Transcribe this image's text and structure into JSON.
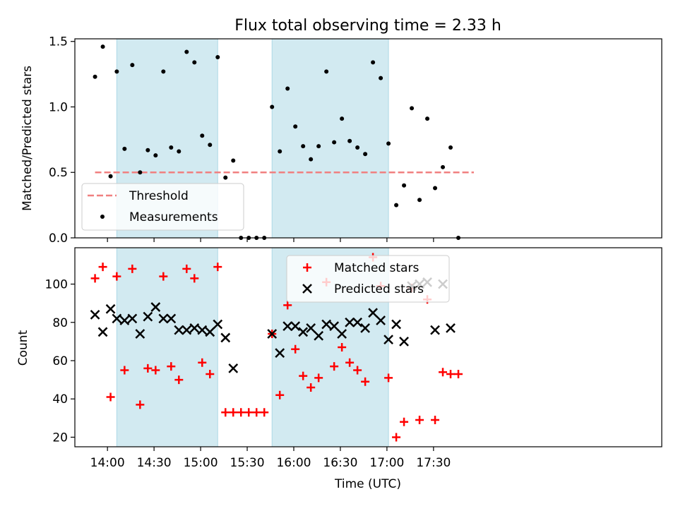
{
  "title": "Flux total observing time = 2.33 h",
  "colors": {
    "shade": "#add8e6",
    "threshold": "#f08080",
    "measurement": "#000000",
    "matched": "#ff0000",
    "predicted": "#000000"
  },
  "chart_data": [
    {
      "type": "scatter",
      "ylabel": "Matched/Predicted stars",
      "xlabel": "",
      "ylim": [
        0,
        1.52
      ],
      "xlim": [
        "13:39",
        "19:57"
      ],
      "yticks": [
        "0.0",
        "0.5",
        "1.0",
        "1.5"
      ],
      "ytick_values": [
        0,
        0.5,
        1.0,
        1.5
      ],
      "shaded_intervals": [
        [
          "14:06",
          "15:11"
        ],
        [
          "15:46",
          "17:01"
        ]
      ],
      "threshold": {
        "name": "Threshold",
        "value": 0.5,
        "x_start": "13:52",
        "x_end": "17:56"
      },
      "legend": {
        "placement": "lower-left",
        "entries": [
          "Threshold",
          "Measurements"
        ]
      },
      "series": [
        {
          "name": "Measurements",
          "marker": "dot",
          "x": [
            "13:52",
            "13:57",
            "14:02",
            "14:06",
            "14:11",
            "14:16",
            "14:21",
            "14:26",
            "14:31",
            "14:36",
            "14:41",
            "14:46",
            "14:51",
            "14:56",
            "15:01",
            "15:06",
            "15:11",
            "15:16",
            "15:21",
            "15:26",
            "15:31",
            "15:36",
            "15:41",
            "15:46",
            "15:51",
            "15:56",
            "16:01",
            "16:06",
            "16:11",
            "16:16",
            "16:21",
            "16:26",
            "16:31",
            "16:36",
            "16:41",
            "16:46",
            "16:51",
            "16:56",
            "17:01",
            "17:06",
            "17:11",
            "17:16",
            "17:21",
            "17:26",
            "17:31",
            "17:36",
            "17:41",
            "17:46"
          ],
          "y": [
            1.23,
            1.46,
            0.47,
            1.27,
            0.68,
            1.32,
            0.5,
            0.67,
            0.63,
            1.27,
            0.69,
            0.66,
            1.42,
            1.34,
            0.78,
            0.71,
            1.38,
            0.46,
            0.59,
            0.0,
            0.0,
            0.0,
            0.0,
            1.0,
            0.66,
            1.14,
            0.85,
            0.7,
            0.6,
            0.7,
            1.27,
            0.73,
            0.91,
            0.74,
            0.69,
            0.64,
            1.34,
            1.22,
            0.72,
            0.25,
            0.4,
            0.99,
            0.29,
            0.91,
            0.38,
            0.54,
            0.69,
            0.0
          ]
        }
      ]
    },
    {
      "type": "scatter",
      "ylabel": "Count",
      "xlabel": "Time (UTC)",
      "ylim": [
        15,
        119
      ],
      "xlim": [
        "13:39",
        "19:57"
      ],
      "yticks": [
        "20",
        "40",
        "60",
        "80",
        "100"
      ],
      "ytick_values": [
        20,
        40,
        60,
        80,
        100
      ],
      "xticks": [
        "14:00",
        "14:30",
        "15:00",
        "15:30",
        "16:00",
        "16:30",
        "17:00",
        "17:30"
      ],
      "shaded_intervals": [
        [
          "14:06",
          "15:11"
        ],
        [
          "15:46",
          "17:01"
        ]
      ],
      "legend": {
        "placement": "top-center",
        "entries": [
          "Matched stars",
          "Predicted stars"
        ]
      },
      "series": [
        {
          "name": "Matched stars",
          "marker": "plus",
          "x": [
            "13:52",
            "13:57",
            "14:02",
            "14:06",
            "14:11",
            "14:16",
            "14:21",
            "14:26",
            "14:31",
            "14:36",
            "14:41",
            "14:46",
            "14:51",
            "14:56",
            "15:01",
            "15:06",
            "15:11",
            "15:16",
            "15:21",
            "15:26",
            "15:31",
            "15:36",
            "15:41",
            "15:46",
            "15:51",
            "15:56",
            "16:01",
            "16:06",
            "16:11",
            "16:16",
            "16:21",
            "16:26",
            "16:31",
            "16:36",
            "16:41",
            "16:46",
            "16:51",
            "16:56",
            "17:01",
            "17:06",
            "17:11",
            "17:16",
            "17:21",
            "17:26",
            "17:31",
            "17:36",
            "17:41",
            "17:46"
          ],
          "y": [
            103,
            109,
            41,
            104,
            55,
            108,
            37,
            56,
            55,
            104,
            57,
            50,
            108,
            103,
            59,
            53,
            109,
            33,
            33,
            33,
            33,
            33,
            33,
            74,
            42,
            89,
            66,
            52,
            46,
            51,
            101,
            57,
            67,
            59,
            55,
            49,
            114,
            99,
            51,
            20,
            28,
            98,
            29,
            92,
            29,
            54,
            53,
            53
          ]
        },
        {
          "name": "Predicted stars",
          "marker": "x",
          "x": [
            "13:52",
            "13:57",
            "14:02",
            "14:06",
            "14:11",
            "14:16",
            "14:21",
            "14:26",
            "14:31",
            "14:36",
            "14:41",
            "14:46",
            "14:51",
            "14:56",
            "15:01",
            "15:06",
            "15:11",
            "15:16",
            "15:21",
            "15:46",
            "15:51",
            "15:56",
            "16:01",
            "16:06",
            "16:11",
            "16:16",
            "16:21",
            "16:26",
            "16:31",
            "16:36",
            "16:41",
            "16:46",
            "16:51",
            "16:56",
            "17:01",
            "17:06",
            "17:11",
            "17:16",
            "17:21",
            "17:26",
            "17:31",
            "17:36",
            "17:41"
          ],
          "y": [
            84,
            75,
            87,
            82,
            81,
            82,
            74,
            83,
            88,
            82,
            82,
            76,
            76,
            77,
            76,
            75,
            79,
            72,
            56,
            74,
            64,
            78,
            78,
            75,
            77,
            73,
            79,
            78,
            74,
            80,
            80,
            77,
            85,
            81,
            71,
            79,
            70,
            99,
            100,
            101,
            76,
            100,
            77
          ]
        }
      ]
    }
  ]
}
